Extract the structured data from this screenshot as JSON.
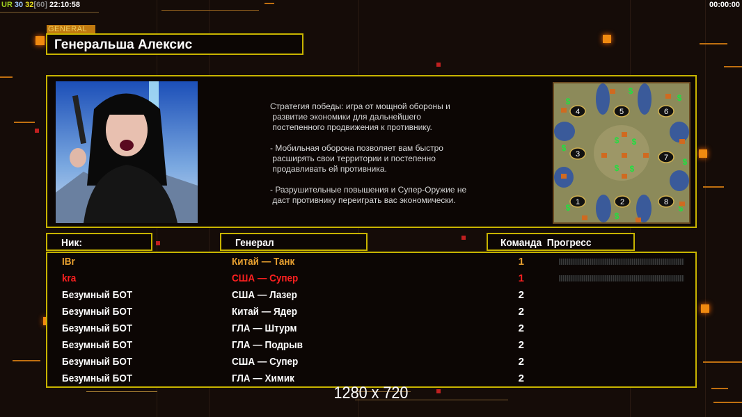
{
  "status_bar": {
    "ur": "UR",
    "v1": "30",
    "v2": "32",
    "v3": "[60]",
    "clock": "22:10:58",
    "timer": "00:00:00"
  },
  "colors": {
    "accent_yellow": "#c8b400",
    "accent_orange": "#f08a10",
    "player1": "#e8a030",
    "player2": "#ff2020",
    "bot": "#ffffff"
  },
  "header": {
    "tab_label": "GENERAL",
    "general_name": "Генеральша Алексис"
  },
  "description": "Стратегия победы: игра от мощной обороны и\n развитие экономики для дальнейшего\n постепенного продвижения к противнику.\n\n- Мобильная оборона позволяет вам быстро\n расширять свои территории и постепенно\n продавливать ей противника.\n\n- Разрушительные повышения и Супер-Оружие не\n даст противнику переиграть вас экономически.",
  "map": {
    "start_positions": [
      "1",
      "2",
      "3",
      "4",
      "5",
      "6",
      "7",
      "8"
    ]
  },
  "columns": {
    "nick": "Ник:",
    "general": "Генерал",
    "team_progress": "Команда  Прогресс"
  },
  "players": [
    {
      "nick": "IBr",
      "general": "Китай — Танк",
      "team": "1",
      "color": "#e8a030",
      "progress": 0
    },
    {
      "nick": "kra",
      "general": "США — Супер",
      "team": "1",
      "color": "#ff2020",
      "progress": 0
    },
    {
      "nick": "Безумный БОТ",
      "general": "США — Лазер",
      "team": "2",
      "color": "#ffffff"
    },
    {
      "nick": "Безумный БОТ",
      "general": "Китай — Ядер",
      "team": "2",
      "color": "#ffffff"
    },
    {
      "nick": "Безумный БОТ",
      "general": "ГЛА — Штурм",
      "team": "2",
      "color": "#ffffff"
    },
    {
      "nick": "Безумный БОТ",
      "general": "ГЛА — Подрыв",
      "team": "2",
      "color": "#ffffff"
    },
    {
      "nick": "Безумный БОТ",
      "general": "США — Супер",
      "team": "2",
      "color": "#ffffff"
    },
    {
      "nick": "Безумный БОТ",
      "general": "ГЛА — Химик",
      "team": "2",
      "color": "#ffffff"
    }
  ],
  "resolution": "1280 x 720"
}
